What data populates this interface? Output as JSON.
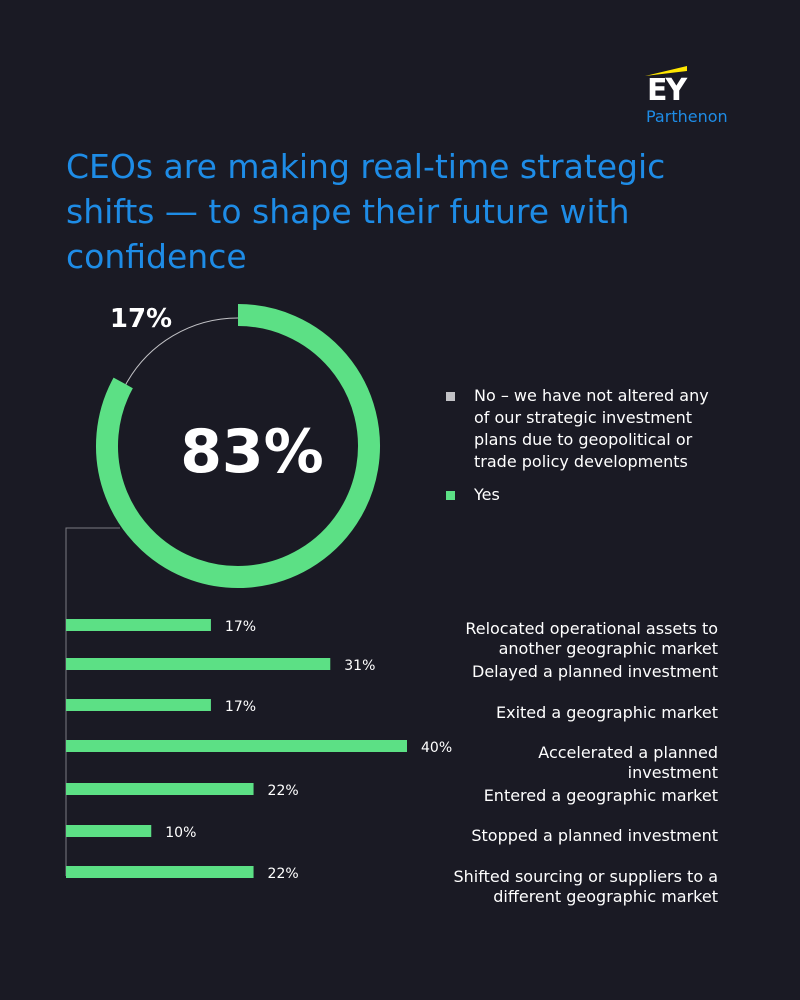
{
  "brand": {
    "name": "EY",
    "subtitle": "Parthenon",
    "accent_color": "#ffe600",
    "subtitle_color": "#1e8ce6"
  },
  "title": "CEOs are making real-time strategic shifts — to shape their future with confidence",
  "colors": {
    "background": "#1a1a24",
    "title": "#1e8ce6",
    "green": "#5ce085",
    "gray": "#c2c2c6"
  },
  "chart_data": [
    {
      "type": "pie",
      "style": "donut",
      "center_label": "83%",
      "slices": [
        {
          "label": "No – we have not altered any of our strategic investment plans due to geopolitical or trade policy developments",
          "value": 17,
          "value_label": "17%",
          "color": "#c2c2c6"
        },
        {
          "label": "Yes",
          "value": 83,
          "value_label": "83%",
          "color": "#5ce085"
        }
      ],
      "legend_position": "right"
    },
    {
      "type": "bar",
      "orientation": "horizontal",
      "color": "#5ce085",
      "xlim": [
        0,
        40
      ],
      "categories": [
        "Relocated operational assets to another geographic market",
        "Delayed a planned investment",
        "Exited a geographic market",
        "Accelerated a planned investment",
        "Entered a geographic market",
        "Stopped a planned investment",
        "Shifted sourcing or suppliers to a different geographic market"
      ],
      "values": [
        17,
        31,
        17,
        40,
        22,
        10,
        22
      ],
      "value_labels": [
        "17%",
        "31%",
        "17%",
        "40%",
        "22%",
        "10%",
        "22%"
      ]
    }
  ]
}
